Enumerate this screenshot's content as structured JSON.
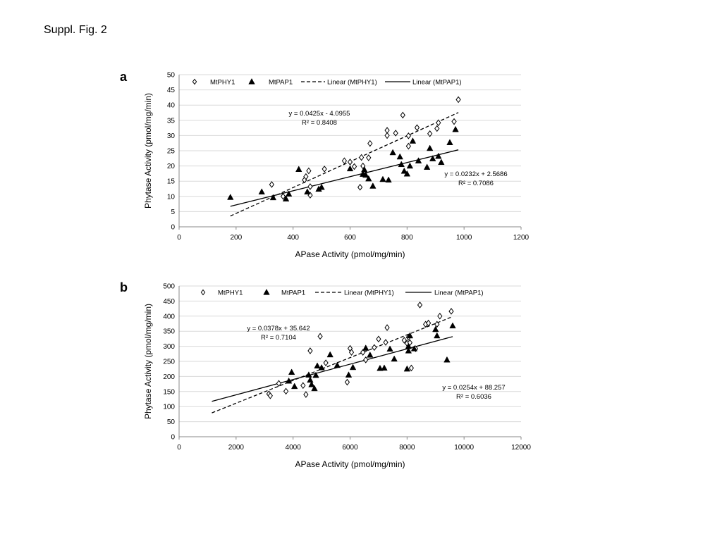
{
  "caption": "Suppl. Fig. 2",
  "chart_data": [
    {
      "panel_label": "a",
      "type": "scatter",
      "xlabel": "APase Activity (pmol/mg/min)",
      "ylabel": "Phytase Activity (pmol/mg/min)",
      "xlim": [
        0,
        1200
      ],
      "ylim": [
        0,
        50
      ],
      "xticks": [
        "0",
        "200",
        "400",
        "600",
        "800",
        "1000",
        "1200"
      ],
      "yticks": [
        "0",
        "5",
        "10",
        "15",
        "20",
        "25",
        "30",
        "35",
        "40",
        "45",
        "50"
      ],
      "grid": "horizontal",
      "legend": {
        "position": "top",
        "entries": [
          "MtPHY1",
          "MtPAP1",
          "Linear (MtPHY1)",
          "Linear (MtPAP1)"
        ]
      },
      "series": [
        {
          "name": "MtPHY1",
          "marker": "open-diamond",
          "points": [
            [
              325,
              13.9
            ],
            [
              365,
              10
            ],
            [
              440,
              15.4
            ],
            [
              445,
              16.5
            ],
            [
              455,
              18.4
            ],
            [
              460,
              10.4
            ],
            [
              460,
              13.2
            ],
            [
              510,
              19
            ],
            [
              580,
              21.7
            ],
            [
              600,
              21.3
            ],
            [
              615,
              19.8
            ],
            [
              635,
              13
            ],
            [
              640,
              22.8
            ],
            [
              645,
              20
            ],
            [
              665,
              22.7
            ],
            [
              670,
              27.4
            ],
            [
              730,
              31.7
            ],
            [
              730,
              30
            ],
            [
              760,
              30.8
            ],
            [
              785,
              36.7
            ],
            [
              805,
              29.9
            ],
            [
              805,
              26.5
            ],
            [
              835,
              32.6
            ],
            [
              880,
              30.6
            ],
            [
              905,
              32.3
            ],
            [
              910,
              34.2
            ],
            [
              965,
              34.6
            ],
            [
              980,
              41.8
            ]
          ]
        },
        {
          "name": "MtPAP1",
          "marker": "filled-triangle",
          "points": [
            [
              180,
              9.7
            ],
            [
              290,
              11.5
            ],
            [
              330,
              9.6
            ],
            [
              375,
              9.2
            ],
            [
              385,
              10.8
            ],
            [
              420,
              18.9
            ],
            [
              450,
              11.5
            ],
            [
              490,
              12.4
            ],
            [
              500,
              13
            ],
            [
              600,
              19.1
            ],
            [
              645,
              17.3
            ],
            [
              650,
              18.8
            ],
            [
              655,
              17
            ],
            [
              665,
              15.8
            ],
            [
              680,
              13.4
            ],
            [
              715,
              15.6
            ],
            [
              735,
              15.4
            ],
            [
              750,
              24.4
            ],
            [
              775,
              23
            ],
            [
              780,
              20.5
            ],
            [
              790,
              18.3
            ],
            [
              800,
              17.4
            ],
            [
              810,
              20
            ],
            [
              820,
              28.2
            ],
            [
              840,
              21.7
            ],
            [
              870,
              19.6
            ],
            [
              880,
              25.8
            ],
            [
              890,
              22.4
            ],
            [
              910,
              23.2
            ],
            [
              920,
              21.2
            ],
            [
              950,
              27.7
            ],
            [
              970,
              32
            ]
          ]
        }
      ],
      "trendlines": [
        {
          "name": "Linear (MtPHY1)",
          "style": "dashed",
          "slope": 0.0425,
          "intercept": -4.0955,
          "x_range": [
            180,
            980
          ],
          "equation": "y = 0.0425x - 4.0955",
          "r2": "R² = 0.8408"
        },
        {
          "name": "Linear (MtPAP1)",
          "style": "solid",
          "slope": 0.0232,
          "intercept": 2.5686,
          "x_range": [
            180,
            980
          ],
          "equation": "y = 0.0232x + 2.5686",
          "r2": "R² = 0.7086"
        }
      ]
    },
    {
      "panel_label": "b",
      "type": "scatter",
      "xlabel": "APase Activity (pmol/mg/min)",
      "ylabel": "Phytase Activity (pmol/mg/min)",
      "xlim": [
        0,
        12000
      ],
      "ylim": [
        0,
        500
      ],
      "xticks": [
        "0",
        "2000",
        "4000",
        "6000",
        "8000",
        "10000",
        "12000"
      ],
      "yticks": [
        "0",
        "50",
        "100",
        "150",
        "200",
        "250",
        "300",
        "350",
        "400",
        "450",
        "500"
      ],
      "grid": "horizontal",
      "legend": {
        "position": "top",
        "entries": [
          "MtPHY1",
          "MtPAP1",
          "Linear (MtPHY1)",
          "Linear (MtPAP1)"
        ]
      },
      "series": [
        {
          "name": "MtPHY1",
          "marker": "open-diamond",
          "points": [
            [
              3150,
              142
            ],
            [
              3200,
              136
            ],
            [
              3500,
              177
            ],
            [
              3750,
              151
            ],
            [
              4350,
              170
            ],
            [
              4450,
              140
            ],
            [
              4600,
              285
            ],
            [
              4950,
              333
            ],
            [
              5150,
              245
            ],
            [
              5900,
              181
            ],
            [
              6000,
              293
            ],
            [
              6050,
              280
            ],
            [
              6450,
              280
            ],
            [
              6550,
              255
            ],
            [
              6850,
              296
            ],
            [
              7000,
              324
            ],
            [
              7250,
              313
            ],
            [
              7300,
              362
            ],
            [
              7900,
              320
            ],
            [
              8000,
              310
            ],
            [
              8050,
              330
            ],
            [
              8100,
              312
            ],
            [
              8150,
              228
            ],
            [
              8300,
              292
            ],
            [
              8450,
              437
            ],
            [
              8650,
              373
            ],
            [
              8750,
              377
            ],
            [
              9050,
              373
            ],
            [
              9150,
              400
            ],
            [
              9550,
              416
            ]
          ]
        },
        {
          "name": "MtPAP1",
          "marker": "filled-triangle",
          "points": [
            [
              3850,
              185
            ],
            [
              3950,
              214
            ],
            [
              4050,
              167
            ],
            [
              4550,
              205
            ],
            [
              4600,
              188
            ],
            [
              4650,
              173
            ],
            [
              4750,
              160
            ],
            [
              4800,
              204
            ],
            [
              4850,
              235
            ],
            [
              5000,
              229
            ],
            [
              5300,
              272
            ],
            [
              5550,
              237
            ],
            [
              5950,
              205
            ],
            [
              6100,
              230
            ],
            [
              6550,
              294
            ],
            [
              6700,
              271
            ],
            [
              7200,
              228
            ],
            [
              7050,
              227
            ],
            [
              7400,
              291
            ],
            [
              7550,
              258
            ],
            [
              8000,
              225
            ],
            [
              8050,
              285
            ],
            [
              8100,
              335
            ],
            [
              9000,
              356
            ],
            [
              9050,
              335
            ],
            [
              9400,
              255
            ],
            [
              9600,
              368
            ],
            [
              8250,
              292
            ],
            [
              8050,
              300
            ]
          ]
        }
      ],
      "trendlines": [
        {
          "name": "Linear (MtPHY1)",
          "style": "dashed",
          "slope": 0.0378,
          "intercept": 35.642,
          "x_range": [
            1150,
            9600
          ],
          "equation": "y = 0.0378x + 35.642",
          "r2": "R² = 0.7104"
        },
        {
          "name": "Linear (MtPAP1)",
          "style": "solid",
          "slope": 0.0254,
          "intercept": 88.257,
          "x_range": [
            1150,
            9600
          ],
          "equation": "y = 0.0254x + 88.257",
          "r2": "R² = 0.6036"
        }
      ]
    }
  ]
}
